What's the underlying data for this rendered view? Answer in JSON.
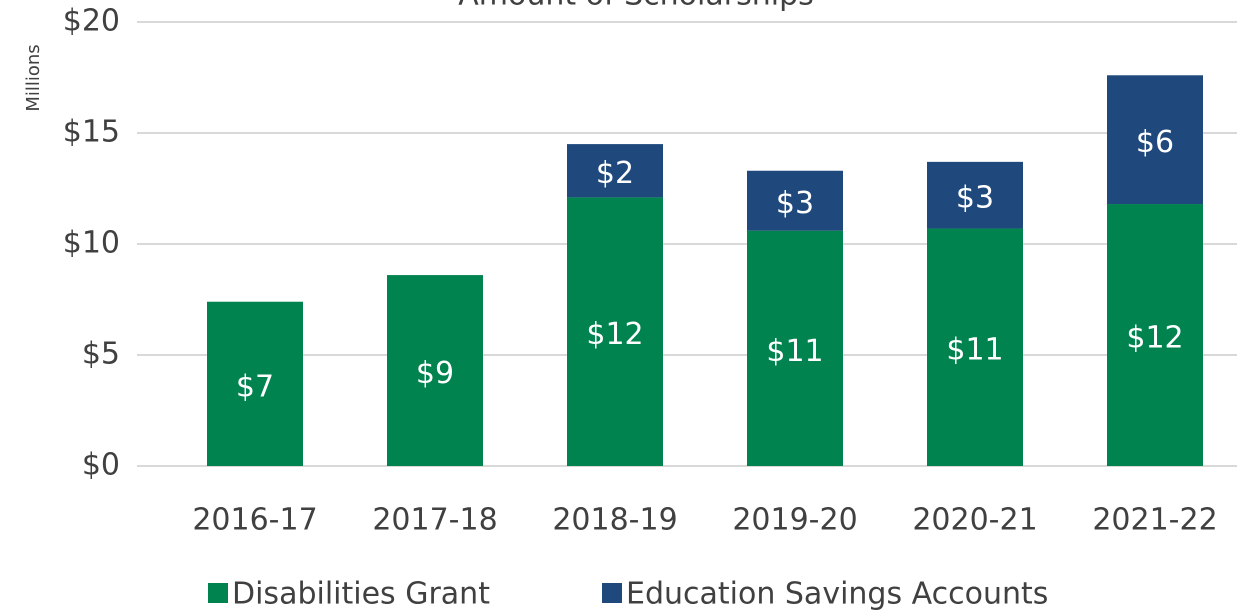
{
  "chart_data": {
    "type": "stacked_bar",
    "title": "Amount of Scholarships",
    "y_label": "Millions",
    "categories": [
      "2016-17",
      "2017-18",
      "2018-19",
      "2019-20",
      "2020-21",
      "2021-22"
    ],
    "series": [
      {
        "name": "Disabilities Grant",
        "color": "#00834f",
        "values": [
          7.4,
          8.6,
          12.1,
          10.6,
          10.7,
          11.8
        ],
        "value_labels": [
          "$7",
          "$9",
          "$12",
          "$11",
          "$11",
          "$12"
        ]
      },
      {
        "name": "Education Savings Accounts",
        "color": "#1f497d",
        "values": [
          null,
          null,
          2.4,
          2.7,
          3.0,
          5.8
        ],
        "value_labels": [
          null,
          null,
          "$2",
          "$3",
          "$3",
          "$6"
        ]
      }
    ],
    "ylim": [
      0,
      20
    ],
    "yticks": [
      {
        "value": 0,
        "label": "$0"
      },
      {
        "value": 5,
        "label": "$5"
      },
      {
        "value": 10,
        "label": "$10"
      },
      {
        "value": 15,
        "label": "$15"
      },
      {
        "value": 20,
        "label": "$20"
      }
    ],
    "grid": true,
    "legend": "bottom"
  }
}
